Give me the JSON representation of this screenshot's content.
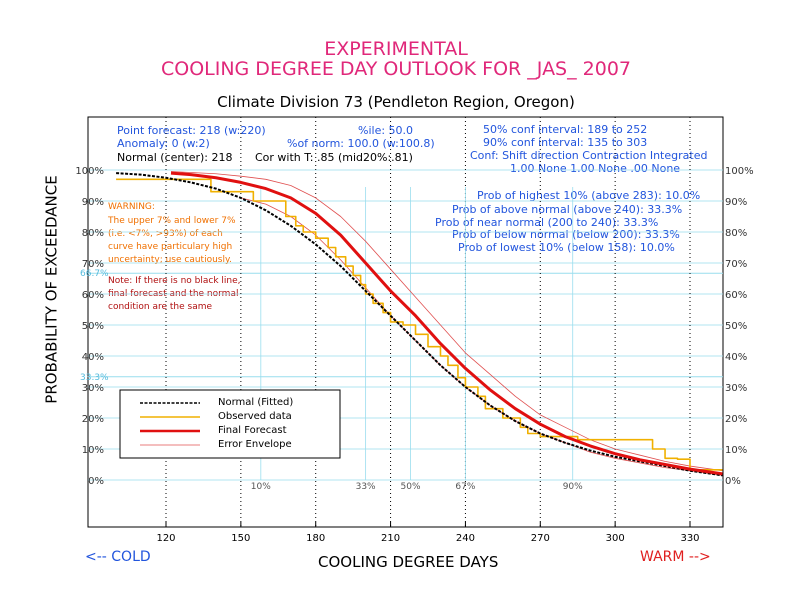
{
  "title1": "EXPERIMENTAL",
  "title2": "COOLING DEGREE DAY OUTLOOK FOR _JAS_ 2007",
  "subtitle": "Climate Division 73 (Pendleton Region, Oregon)",
  "info": {
    "point_forecast": "Point forecast: 218 (w:220)",
    "anomaly": "Anomaly: 0 (w:2)",
    "normal": "Normal (center): 218",
    "cor": "Cor with T: .85 (mid20%:.81)",
    "ile": "%ile: 50.0",
    "of_norm": "%of norm:  100.0 (w:100.8)",
    "conf50": "50% conf interval: 189 to 252",
    "conf90": "90% conf interval: 135 to 303",
    "conf_header": "Conf: Shift direction   Contraction   Integrated",
    "conf_values": "1.00 None          1.00 None   .00 None"
  },
  "probs": [
    "Prob of highest 10% (above 283): 10.0%",
    "Prob of above normal (above 240): 33.3%",
    "Prob of near normal (200 to 240): 33.3%",
    "Prob of below normal (below 200): 33.3%",
    "Prob of lowest 10% (below 158): 10.0%"
  ],
  "warning": {
    "head": "WARNING:",
    "lines": [
      "The upper 7% and lower 7%",
      "(i.e. <7%, >93%) of each",
      "curve have particulary high",
      "uncertainty; use cautiously."
    ]
  },
  "note": {
    "lines": [
      "Note: If there is no black line,",
      "final forecast and  the normal",
      "condition are the same"
    ]
  },
  "legend": {
    "normal": "Normal (Fitted)",
    "observed": "Observed data",
    "forecast": "Final Forecast",
    "envelope": "Error Envelope"
  },
  "cold_label": "<-- COLD",
  "warm_label": "WARM -->",
  "colors": {
    "title": "#e0287a",
    "normal": "#000000",
    "observed": "#f0b000",
    "forecast": "#e01010",
    "envelope": "#e05050",
    "grid": "#99ddee",
    "info": "#2255dd"
  },
  "chart_data": {
    "type": "line",
    "xlabel": "COOLING DEGREE DAYS",
    "ylabel": "PROBABILITY OF EXCEEDANCE",
    "xlim": [
      100,
      343
    ],
    "ylim": [
      0,
      100
    ],
    "xticks": [
      120,
      150,
      180,
      210,
      240,
      270,
      300,
      330
    ],
    "yticks_left": [
      "0%",
      "10%",
      "20%",
      "30%",
      "40%",
      "50%",
      "60%",
      "70%",
      "80%",
      "90%",
      "100%"
    ],
    "yticks_right": [
      "0%",
      "10%",
      "20%",
      "30%",
      "40%",
      "50%",
      "60%",
      "70%",
      "80%",
      "90%",
      "100%"
    ],
    "ref_lines_y": [
      {
        "value": 66.7,
        "label": "66.7%"
      },
      {
        "value": 33.3,
        "label": "33.3%"
      }
    ],
    "percentile_lines": [
      {
        "x": 158,
        "label": "10%"
      },
      {
        "x": 200,
        "label": "33%"
      },
      {
        "x": 218,
        "label": "50%"
      },
      {
        "x": 240,
        "label": "67%"
      },
      {
        "x": 283,
        "label": "90%"
      }
    ],
    "series": [
      {
        "name": "Normal (Fitted)",
        "x": [
          100,
          110,
          120,
          130,
          140,
          150,
          160,
          170,
          180,
          190,
          200,
          210,
          220,
          230,
          240,
          250,
          260,
          270,
          280,
          290,
          300,
          310,
          320,
          330,
          343
        ],
        "y": [
          99,
          98.5,
          97.5,
          96,
          94,
          91,
          87,
          82,
          76,
          69,
          61,
          53,
          45,
          37,
          30,
          24,
          19,
          15,
          12,
          9.5,
          7.5,
          6,
          4.5,
          3,
          1.5
        ]
      },
      {
        "name": "Observed data",
        "x": [
          100,
          135,
          138,
          150,
          155,
          165,
          168,
          172,
          175,
          180,
          185,
          188,
          192,
          195,
          198,
          200,
          203,
          207,
          210,
          215,
          220,
          225,
          230,
          233,
          237,
          240,
          245,
          248,
          255,
          262,
          265,
          270,
          285,
          300,
          315,
          320,
          325,
          330,
          343
        ],
        "y": [
          97,
          97,
          93,
          93,
          90,
          90,
          85,
          82,
          80,
          78,
          75,
          72,
          69,
          66,
          63,
          60,
          57,
          54,
          51,
          50,
          47,
          43,
          40,
          37,
          33,
          30,
          27,
          23,
          20,
          17,
          15,
          14,
          13,
          13,
          10,
          7,
          6.7,
          3.3,
          3.3
        ]
      },
      {
        "name": "Final Forecast",
        "x": [
          122,
          130,
          140,
          150,
          160,
          170,
          180,
          190,
          200,
          210,
          220,
          230,
          240,
          250,
          260,
          270,
          280,
          290,
          300,
          310,
          320,
          330,
          343
        ],
        "y": [
          99,
          98.5,
          97.5,
          96,
          94,
          91,
          86,
          79,
          70,
          61,
          53,
          44,
          36,
          29,
          23,
          18,
          14,
          11,
          8.5,
          6.5,
          5,
          3.5,
          2
        ]
      },
      {
        "name": "Error Envelope",
        "x": [
          122,
          130,
          140,
          150,
          160,
          170,
          180,
          190,
          200,
          210,
          220,
          230,
          240,
          250,
          260,
          270,
          280,
          290,
          300,
          310,
          320,
          330,
          343
        ],
        "y": [
          99.5,
          99.2,
          98.8,
          98,
          97,
          95,
          91,
          85,
          77,
          68,
          59,
          50,
          41,
          34,
          27,
          21,
          17,
          13,
          10,
          8,
          6,
          4.5,
          3
        ]
      },
      {
        "name": "Error Envelope",
        "x": [
          150,
          160,
          170,
          180,
          190,
          200,
          210,
          220,
          230,
          240,
          250,
          260,
          270,
          280,
          290,
          300,
          310,
          320,
          330,
          343
        ],
        "y": [
          91,
          89,
          85,
          79,
          71,
          62,
          53,
          45,
          37,
          30,
          24,
          19,
          15,
          12,
          9,
          7,
          5.5,
          4,
          3,
          1.5
        ]
      }
    ]
  }
}
